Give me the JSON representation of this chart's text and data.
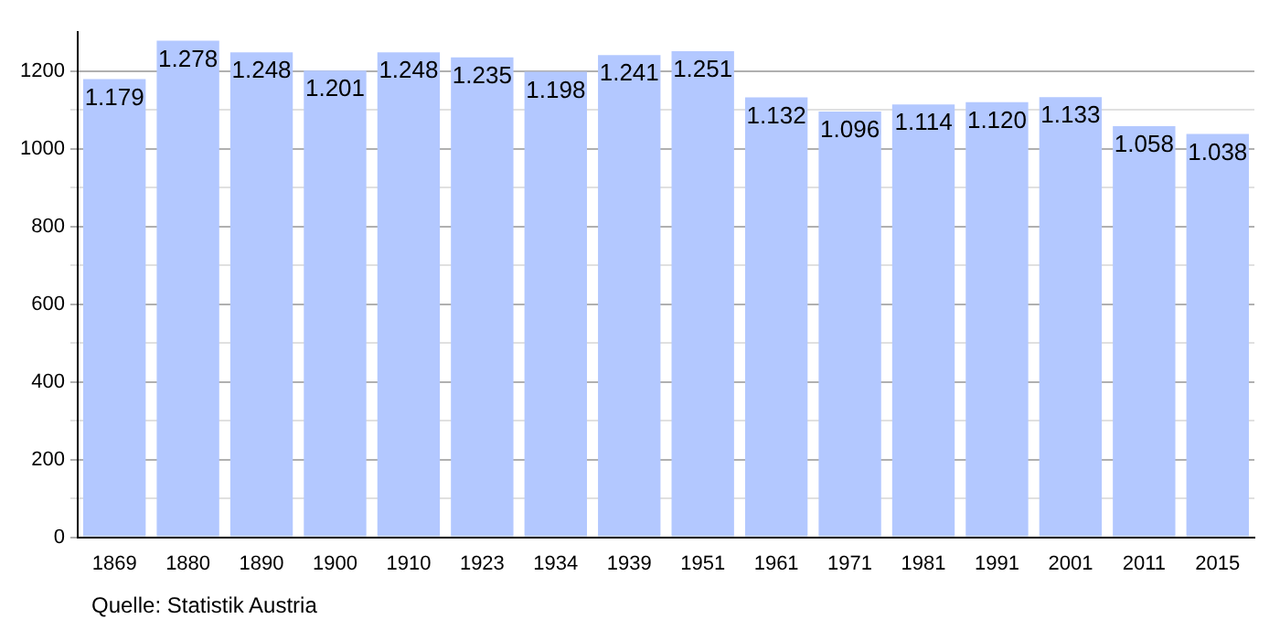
{
  "chart_data": {
    "type": "bar",
    "categories": [
      "1869",
      "1880",
      "1890",
      "1900",
      "1910",
      "1923",
      "1934",
      "1939",
      "1951",
      "1961",
      "1971",
      "1981",
      "1991",
      "2001",
      "2011",
      "2015"
    ],
    "values": [
      1179,
      1278,
      1248,
      1201,
      1248,
      1235,
      1198,
      1241,
      1251,
      1132,
      1096,
      1114,
      1120,
      1133,
      1058,
      1038
    ],
    "value_labels": [
      "1.179",
      "1.278",
      "1.248",
      "1.201",
      "1.248",
      "1.235",
      "1.198",
      "1.241",
      "1.251",
      "1.132",
      "1.096",
      "1.114",
      "1.120",
      "1.133",
      "1.058",
      "1.038"
    ],
    "color": "#b3c8ff",
    "ylim": [
      0,
      1300
    ],
    "yticks": [
      0,
      {
        "value": 100,
        "label": null
      },
      200,
      {
        "value": 300,
        "label": null
      },
      400,
      {
        "value": 500,
        "label": null
      },
      600,
      {
        "value": 700,
        "label": null
      },
      800,
      {
        "value": 900,
        "label": null
      },
      1000,
      {
        "value": 1100,
        "label": null
      },
      1200
    ],
    "grid": "y",
    "annotations": [
      "Quelle: Statistik Austria"
    ]
  }
}
